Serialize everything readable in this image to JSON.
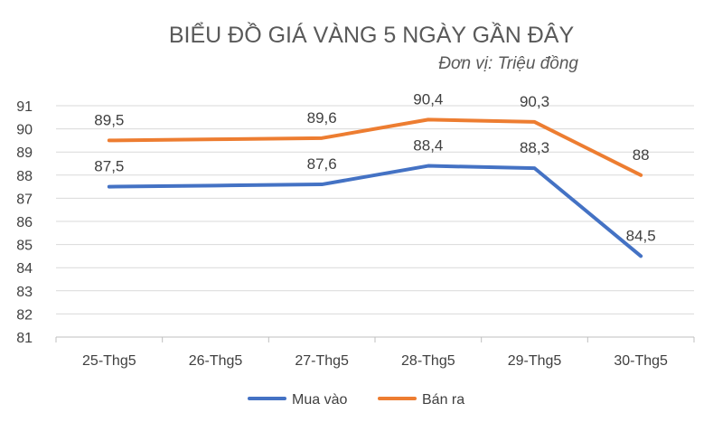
{
  "chart_data": {
    "type": "line",
    "title": "BIỂU ĐỒ GIÁ VÀNG 5 NGÀY GẦN ĐÂY",
    "subtitle": "Đơn vị: Triệu đồng",
    "categories": [
      "25-Thg5",
      "26-Thg5",
      "27-Thg5",
      "28-Thg5",
      "29-Thg5",
      "30-Thg5"
    ],
    "series": [
      {
        "name": "Mua vào",
        "color": "#4472C4",
        "values": [
          87.5,
          87.55,
          87.6,
          88.4,
          88.3,
          84.5
        ],
        "labels": [
          "87,5",
          "",
          "87,6",
          "88,4",
          "88,3",
          "84,5"
        ]
      },
      {
        "name": "Bán ra",
        "color": "#ED7D31",
        "values": [
          89.5,
          89.55,
          89.6,
          90.4,
          90.3,
          88
        ],
        "labels": [
          "89,5",
          "",
          "89,6",
          "90,4",
          "90,3",
          "88"
        ]
      }
    ],
    "ylim": [
      81,
      91
    ],
    "yticks": [
      81,
      82,
      83,
      84,
      85,
      86,
      87,
      88,
      89,
      90,
      91
    ],
    "grid": true,
    "legend_position": "bottom"
  }
}
